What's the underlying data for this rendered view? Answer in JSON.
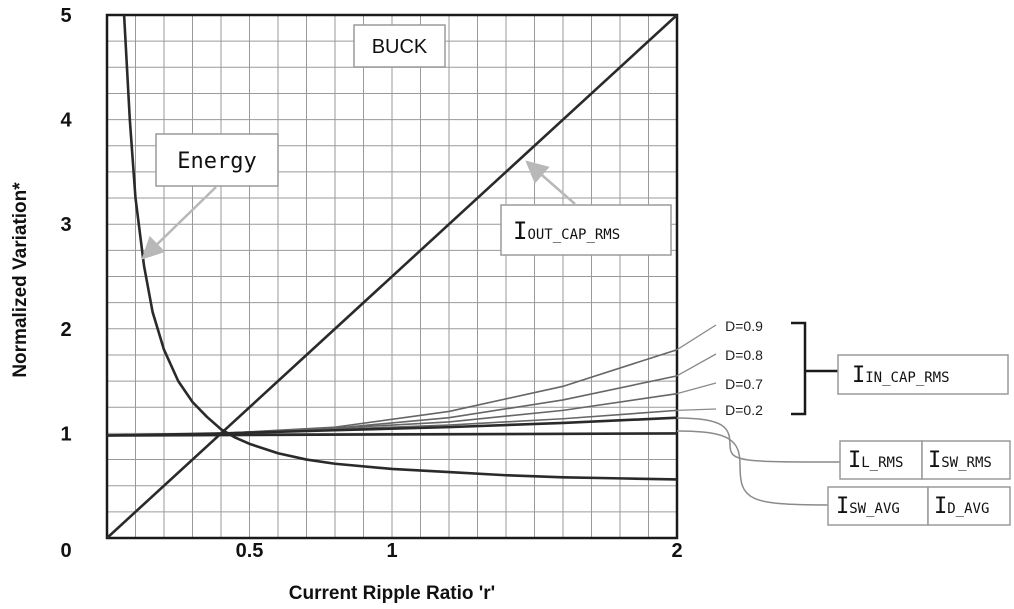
{
  "chart_data": {
    "type": "line",
    "title": "BUCK",
    "xlabel": "Current Ripple Ratio 'r'",
    "ylabel": "Normalized Variation*",
    "xlim": [
      0,
      2
    ],
    "ylim": [
      0,
      5
    ],
    "x_ticks": [
      {
        "value": 0.5,
        "label": "0.5"
      },
      {
        "value": 1,
        "label": "1"
      },
      {
        "value": 2,
        "label": "2"
      }
    ],
    "y_ticks": [
      {
        "value": 1,
        "label": "1"
      },
      {
        "value": 2,
        "label": "2"
      },
      {
        "value": 3,
        "label": "3"
      },
      {
        "value": 4,
        "label": "4"
      },
      {
        "value": 5,
        "label": "5"
      }
    ],
    "origin_label": "0",
    "grid": true,
    "series": [
      {
        "id": "energy",
        "x": [
          0.06,
          0.08,
          0.1,
          0.13,
          0.16,
          0.2,
          0.25,
          0.3,
          0.35,
          0.4,
          0.45,
          0.5,
          0.6,
          0.7,
          0.8,
          1.0,
          1.2,
          1.4,
          1.6,
          1.8,
          2.0
        ],
        "y": [
          5.0,
          4.0,
          3.25,
          2.6,
          2.16,
          1.8,
          1.5,
          1.3,
          1.16,
          1.04,
          0.96,
          0.9,
          0.81,
          0.75,
          0.71,
          0.66,
          0.63,
          0.6,
          0.58,
          0.57,
          0.56
        ]
      },
      {
        "id": "iout-cap-rms",
        "x": [
          0.0,
          2.0
        ],
        "y": [
          0.0,
          5.0
        ]
      },
      {
        "id": "iin-cap-rms-d09",
        "x": [
          0.0,
          0.4,
          0.8,
          1.2,
          1.6,
          2.0
        ],
        "y": [
          0.98,
          1.0,
          1.06,
          1.21,
          1.45,
          1.8
        ]
      },
      {
        "id": "iin-cap-rms-d08",
        "x": [
          0.0,
          0.4,
          0.8,
          1.2,
          1.6,
          2.0
        ],
        "y": [
          0.98,
          1.0,
          1.05,
          1.15,
          1.32,
          1.55
        ]
      },
      {
        "id": "iin-cap-rms-d07",
        "x": [
          0.0,
          0.4,
          0.8,
          1.2,
          1.6,
          2.0
        ],
        "y": [
          0.98,
          1.0,
          1.05,
          1.11,
          1.22,
          1.38
        ]
      },
      {
        "id": "iin-cap-rms-d02",
        "x": [
          0.0,
          0.4,
          0.8,
          1.2,
          1.6,
          2.0
        ],
        "y": [
          0.98,
          1.0,
          1.04,
          1.08,
          1.14,
          1.22
        ]
      },
      {
        "id": "il-rms",
        "x": [
          0.0,
          0.4,
          0.8,
          1.2,
          1.6,
          2.0
        ],
        "y": [
          0.98,
          1.0,
          1.03,
          1.06,
          1.1,
          1.15
        ]
      },
      {
        "id": "isw-avg",
        "x": [
          0.0,
          2.0
        ],
        "y": [
          0.98,
          1.0
        ]
      }
    ],
    "annotations": {
      "energy": "Energy",
      "iout": {
        "main": "I",
        "sub": "OUT_CAP_RMS"
      },
      "iin": {
        "main": "I",
        "sub": "IN_CAP_RMS"
      },
      "il": {
        "main": "I",
        "sub": "L_RMS"
      },
      "isw_rms": {
        "main": "I",
        "sub": "SW_RMS"
      },
      "isw_avg": {
        "main": "I",
        "sub": "SW_AVG"
      },
      "id_avg": {
        "main": "I",
        "sub": "D_AVG"
      },
      "d_labels": [
        "D=0.9",
        "D=0.8",
        "D=0.7",
        "D=0.2"
      ]
    },
    "colors": {
      "curve": "#2a2a2a",
      "dcurves": "#666666",
      "grid": "#9a9a9a",
      "leader": "#8a8a8a",
      "arrow": "#b8b8b8"
    }
  }
}
